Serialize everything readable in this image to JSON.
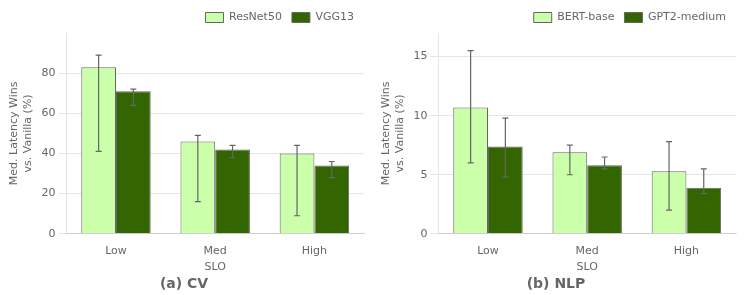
{
  "chart_data": [
    {
      "type": "bar",
      "title": "(a) CV",
      "xlabel": "SLO",
      "ylabel": "Med. Latency Wins\nvs. Vanilla (%)",
      "categories": [
        "Low",
        "Med",
        "High"
      ],
      "series": [
        {
          "name": "ResNet50",
          "color": "#ccffaa",
          "values": [
            83,
            46,
            40
          ],
          "yerr_low": [
            42,
            30,
            31
          ],
          "yerr_high": [
            6,
            3,
            4
          ]
        },
        {
          "name": "VGG13",
          "color": "#336600",
          "values": [
            71,
            42,
            34
          ],
          "yerr_low": [
            7,
            4,
            6
          ],
          "yerr_high": [
            1,
            2,
            2
          ]
        }
      ],
      "ylim": [
        0,
        100
      ],
      "yticks": [
        0,
        20,
        40,
        60,
        80
      ],
      "grid": true,
      "legend": "upper right"
    },
    {
      "type": "bar",
      "title": "(b) NLP",
      "xlabel": "SLO",
      "ylabel": "Med. Latency Wins\nvs. Vanilla (%)",
      "categories": [
        "Low",
        "Med",
        "High"
      ],
      "series": [
        {
          "name": "BERT-base",
          "color": "#ccffaa",
          "values": [
            10.7,
            6.9,
            5.3
          ],
          "yerr_low": [
            4.7,
            1.9,
            3.3
          ],
          "yerr_high": [
            4.8,
            0.6,
            2.5
          ]
        },
        {
          "name": "GPT2-medium",
          "color": "#336600",
          "values": [
            7.4,
            5.8,
            3.9
          ],
          "yerr_low": [
            2.6,
            0.3,
            0.5
          ],
          "yerr_high": [
            2.4,
            0.7,
            1.6
          ]
        }
      ],
      "ylim": [
        0,
        17
      ],
      "yticks": [
        0,
        5,
        10,
        15
      ],
      "grid": true,
      "legend": "upper right"
    }
  ]
}
